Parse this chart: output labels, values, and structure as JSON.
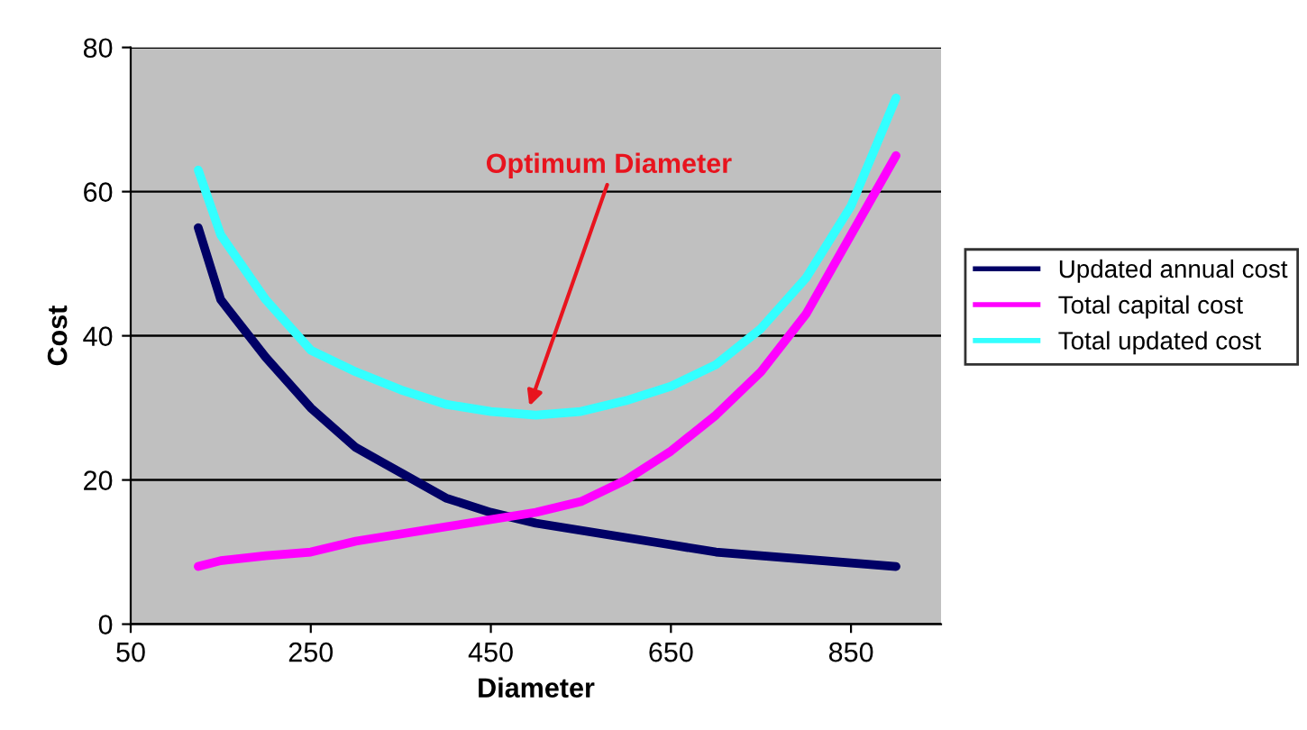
{
  "chart_data": {
    "type": "line",
    "xlabel": "Diameter",
    "ylabel": "Cost",
    "x": [
      125,
      150,
      200,
      250,
      300,
      350,
      400,
      450,
      500,
      550,
      600,
      650,
      700,
      750,
      800,
      850,
      900
    ],
    "series": [
      {
        "name": "Updated annual cost",
        "color": "#000066",
        "values": [
          55,
          45,
          37,
          30,
          24.5,
          21,
          17.5,
          15.5,
          14,
          13,
          12,
          11,
          10,
          9.5,
          9,
          8.5,
          8
        ]
      },
      {
        "name": "Total capital cost",
        "color": "#ff00ff",
        "values": [
          8,
          8.8,
          9.5,
          10,
          11.5,
          12.5,
          13.5,
          14.5,
          15.5,
          17,
          20,
          24,
          29,
          35,
          43,
          54,
          65
        ]
      },
      {
        "name": "Total updated cost",
        "color": "#33ffff",
        "values": [
          63,
          54,
          45,
          38,
          35,
          32.5,
          30.5,
          29.5,
          29,
          29.5,
          31,
          33,
          36,
          41,
          48,
          58,
          73
        ]
      }
    ],
    "xlim": [
      50,
      950
    ],
    "xticks": [
      50,
      250,
      450,
      650,
      850
    ],
    "ylim": [
      0,
      80
    ],
    "yticks": [
      0,
      20,
      40,
      60,
      80
    ],
    "grid": "y",
    "legend": "right",
    "marker": "none",
    "line_style": "solid",
    "annotations": [
      "Optimum Diameter"
    ]
  }
}
